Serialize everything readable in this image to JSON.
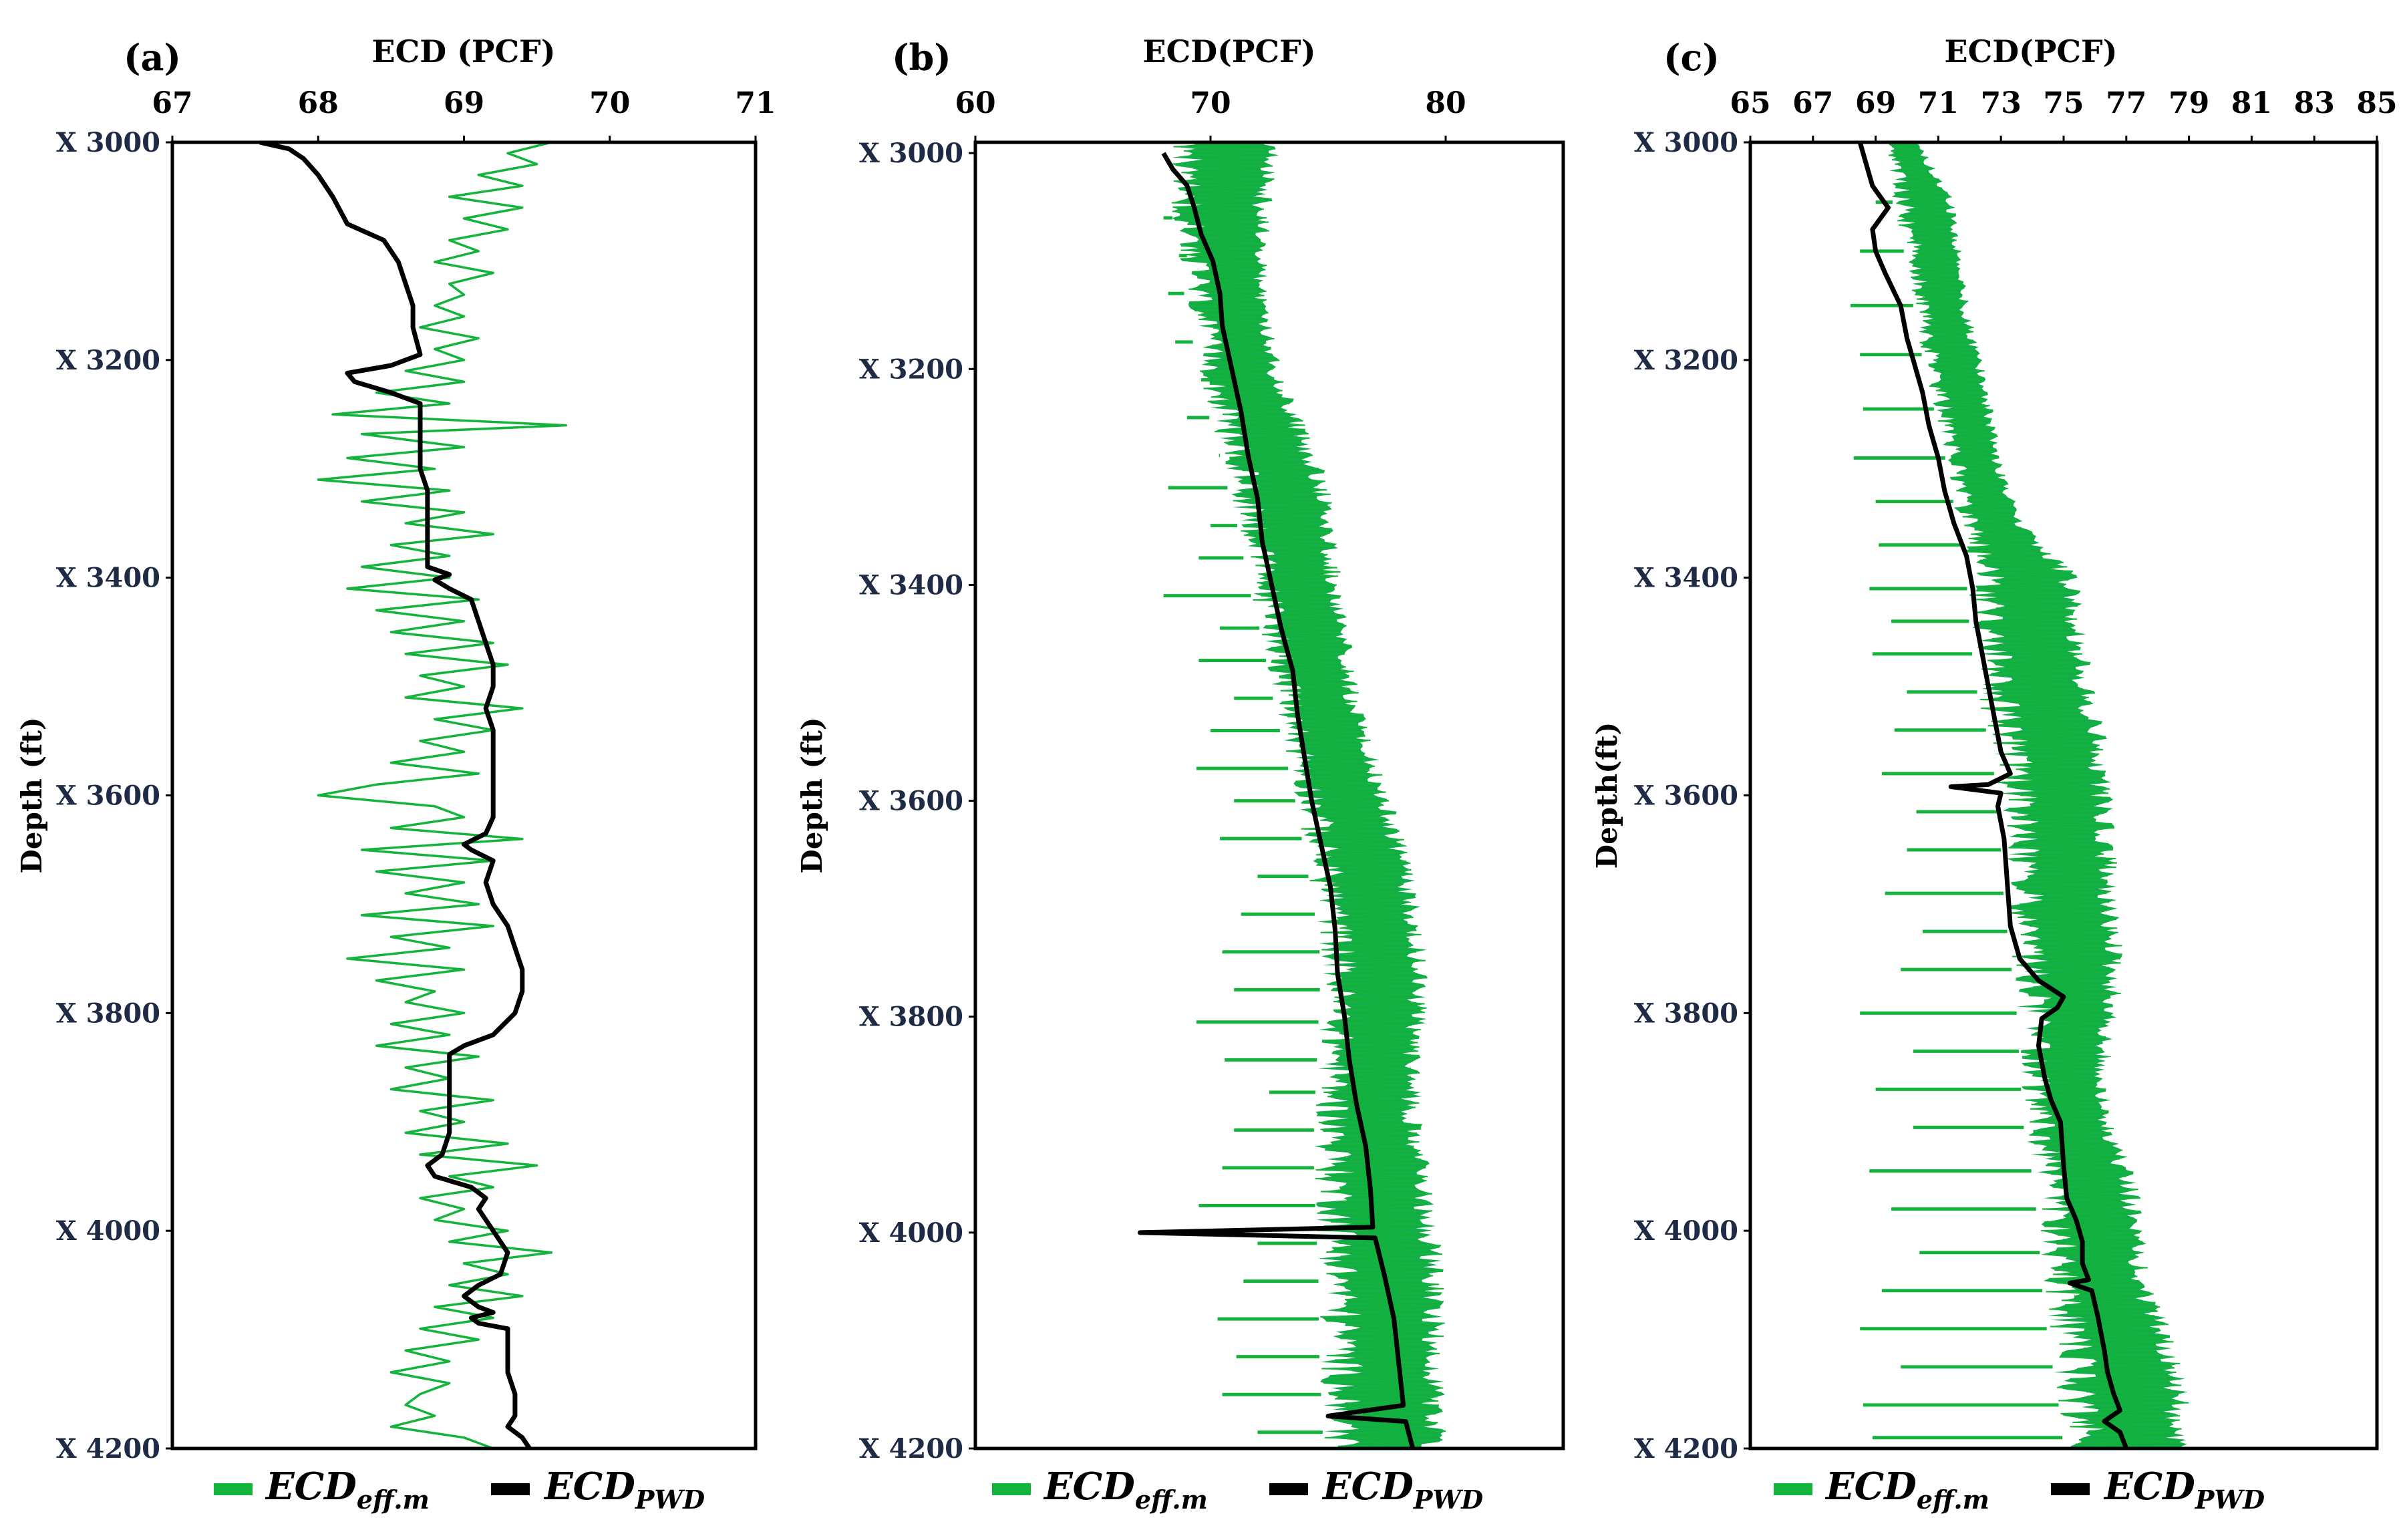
{
  "figure_title": "ECD comparison panels",
  "legend": {
    "eff_main": "ECD",
    "eff_sub": "eff.m",
    "pwd_main": "ECD",
    "pwd_sub": "PWD"
  },
  "colors": {
    "eff": "#14b33c",
    "eff_dense": "#12ad48",
    "pwd": "#000000"
  },
  "chart_data": [
    {
      "type": "line",
      "panel_label": "(a)",
      "xlabel": "ECD (PCF)",
      "ylabel": "Depth (ft)",
      "xlim": [
        67,
        71
      ],
      "xticks": [
        67,
        68,
        69,
        70,
        71
      ],
      "xtick_labels": [
        "67",
        "68",
        "69",
        "70",
        "71"
      ],
      "ylim": [
        3000,
        4200
      ],
      "yticks": [
        3000,
        3200,
        3400,
        3600,
        3800,
        4000,
        4200
      ],
      "ytick_labels": [
        "X 3000",
        "X 3200",
        "X 3400",
        "X 3600",
        "X 3800",
        "X 4000",
        "X 4200"
      ],
      "series": [
        {
          "name": "ECD_eff.m",
          "style": "thin",
          "depth": [
            3000,
            3010,
            3020,
            3030,
            3040,
            3050,
            3060,
            3070,
            3080,
            3090,
            3100,
            3110,
            3120,
            3130,
            3140,
            3150,
            3160,
            3170,
            3180,
            3190,
            3200,
            3210,
            3220,
            3230,
            3240,
            3250,
            3260,
            3268,
            3280,
            3290,
            3300,
            3310,
            3320,
            3330,
            3340,
            3350,
            3360,
            3370,
            3380,
            3390,
            3400,
            3410,
            3420,
            3430,
            3440,
            3450,
            3460,
            3470,
            3480,
            3490,
            3500,
            3510,
            3520,
            3530,
            3540,
            3550,
            3560,
            3570,
            3580,
            3590,
            3600,
            3610,
            3620,
            3630,
            3640,
            3650,
            3660,
            3670,
            3680,
            3690,
            3700,
            3710,
            3720,
            3730,
            3740,
            3750,
            3760,
            3770,
            3780,
            3790,
            3800,
            3810,
            3820,
            3830,
            3840,
            3850,
            3860,
            3870,
            3880,
            3890,
            3900,
            3910,
            3920,
            3930,
            3940,
            3950,
            3960,
            3970,
            3980,
            3990,
            4000,
            4010,
            4020,
            4030,
            4040,
            4050,
            4060,
            4070,
            4080,
            4090,
            4100,
            4110,
            4120,
            4130,
            4140,
            4150,
            4160,
            4170,
            4180,
            4190,
            4200
          ],
          "values": [
            69.6,
            69.3,
            69.5,
            69.1,
            69.4,
            68.9,
            69.4,
            69.0,
            69.3,
            68.9,
            69.1,
            68.8,
            69.2,
            68.9,
            69.0,
            68.8,
            69.0,
            68.7,
            69.1,
            68.8,
            69.0,
            68.6,
            69.0,
            68.4,
            68.9,
            68.1,
            69.7,
            68.3,
            69.0,
            68.2,
            68.8,
            68.0,
            68.9,
            68.3,
            69.0,
            68.6,
            69.2,
            68.5,
            68.9,
            68.3,
            68.9,
            68.2,
            69.1,
            68.4,
            69.0,
            68.5,
            69.2,
            68.6,
            69.3,
            68.7,
            69.0,
            68.6,
            69.4,
            68.8,
            69.2,
            68.7,
            69.0,
            68.5,
            69.1,
            68.4,
            68.0,
            68.8,
            69.0,
            68.5,
            69.4,
            68.3,
            69.2,
            68.4,
            69.0,
            68.6,
            69.1,
            68.3,
            69.2,
            68.5,
            68.9,
            68.2,
            69.0,
            68.4,
            68.8,
            68.6,
            69.0,
            68.5,
            68.9,
            68.4,
            69.1,
            68.6,
            68.9,
            68.5,
            69.2,
            68.7,
            69.0,
            68.6,
            69.3,
            68.7,
            69.5,
            68.9,
            69.2,
            68.7,
            69.0,
            68.8,
            69.3,
            68.9,
            69.6,
            69.0,
            69.3,
            68.9,
            69.4,
            68.8,
            69.2,
            68.7,
            69.1,
            68.6,
            68.9,
            68.5,
            68.9,
            68.7,
            68.6,
            68.8,
            68.5,
            69.0,
            69.2
          ],
          "breaks": []
        },
        {
          "name": "ECD_PWD",
          "style": "thick",
          "depth": [
            3000,
            3006,
            3015,
            3030,
            3050,
            3075,
            3090,
            3110,
            3130,
            3150,
            3170,
            3195,
            3205,
            3212,
            3220,
            3230,
            3240,
            3260,
            3280,
            3300,
            3320,
            3340,
            3360,
            3380,
            3390,
            3397,
            3402,
            3410,
            3420,
            3440,
            3460,
            3480,
            3500,
            3520,
            3540,
            3560,
            3580,
            3600,
            3620,
            3635,
            3645,
            3650,
            3660,
            3680,
            3700,
            3720,
            3740,
            3760,
            3780,
            3800,
            3820,
            3830,
            3838,
            3850,
            3870,
            3890,
            3910,
            3930,
            3935,
            3940,
            3950,
            3960,
            3970,
            3980,
            4000,
            4020,
            4040,
            4050,
            4055,
            4060,
            4070,
            4075,
            4080,
            4085,
            4090,
            4110,
            4130,
            4150,
            4170,
            4180,
            4190,
            4200
          ],
          "values": [
            67.6,
            67.8,
            67.9,
            68.0,
            68.1,
            68.2,
            68.45,
            68.55,
            68.6,
            68.65,
            68.65,
            68.7,
            68.5,
            68.2,
            68.25,
            68.5,
            68.7,
            68.7,
            68.7,
            68.7,
            68.75,
            68.75,
            68.75,
            68.75,
            68.75,
            68.9,
            68.8,
            68.9,
            69.05,
            69.1,
            69.15,
            69.2,
            69.2,
            69.15,
            69.2,
            69.2,
            69.2,
            69.2,
            69.2,
            69.15,
            69.0,
            69.05,
            69.2,
            69.15,
            69.2,
            69.3,
            69.35,
            69.4,
            69.4,
            69.35,
            69.2,
            69.0,
            68.9,
            68.9,
            68.9,
            68.9,
            68.9,
            68.85,
            68.8,
            68.75,
            68.8,
            69.05,
            69.15,
            69.1,
            69.2,
            69.3,
            69.25,
            69.1,
            69.05,
            69.0,
            69.1,
            69.2,
            69.05,
            69.1,
            69.3,
            69.3,
            69.3,
            69.35,
            69.35,
            69.3,
            69.4,
            69.45
          ],
          "breaks": []
        }
      ]
    },
    {
      "type": "line",
      "panel_label": "(b)",
      "xlabel": "ECD(PCF)",
      "ylabel": "Depth (ft)",
      "xlim": [
        60,
        85
      ],
      "xticks": [
        60,
        70,
        80
      ],
      "xtick_labels": [
        "60",
        "70",
        "80"
      ],
      "ylim": [
        2990,
        4200
      ],
      "yticks": [
        3000,
        3200,
        3400,
        3600,
        3800,
        4000,
        4200
      ],
      "ytick_labels": [
        "X 3000",
        "X 3200",
        "X 3400",
        "X 3600",
        "X 3800",
        "X 4000",
        "X 4200"
      ],
      "series": [
        {
          "name": "ECD_eff.m",
          "style": "band",
          "depth": [
            2990,
            3050,
            3100,
            3150,
            3200,
            3250,
            3300,
            3350,
            3400,
            3450,
            3500,
            3550,
            3600,
            3650,
            3700,
            3750,
            3800,
            3850,
            3900,
            3950,
            4000,
            4050,
            4100,
            4150,
            4200
          ],
          "upper": [
            73.0,
            72.6,
            72.4,
            72.6,
            73.0,
            74.0,
            75.0,
            75.4,
            75.6,
            76.0,
            76.3,
            77.0,
            77.8,
            78.5,
            79.0,
            79.3,
            79.2,
            79.0,
            79.0,
            79.5,
            79.8,
            80.0,
            80.0,
            80.0,
            80.0
          ],
          "lower": [
            67.8,
            68.3,
            68.7,
            69.0,
            69.5,
            70.0,
            70.6,
            71.2,
            71.6,
            72.2,
            72.6,
            73.1,
            73.6,
            74.0,
            74.4,
            74.7,
            74.6,
            74.5,
            74.4,
            74.4,
            74.5,
            74.6,
            74.6,
            74.7,
            74.8
          ],
          "spikes_depth": [
            3060,
            3095,
            3130,
            3175,
            3210,
            3245,
            3280,
            3310,
            3345,
            3375,
            3410,
            3440,
            3470,
            3505,
            3535,
            3570,
            3600,
            3635,
            3670,
            3705,
            3740,
            3775,
            3805,
            3840,
            3870,
            3905,
            3940,
            3975,
            4010,
            4045,
            4080,
            4115,
            4150,
            4185
          ],
          "spikes_value": [
            68.0,
            69.0,
            68.2,
            68.5,
            70.0,
            69.0,
            70.4,
            68.2,
            70.0,
            69.5,
            68.0,
            70.4,
            69.5,
            71.0,
            70.0,
            69.4,
            71.0,
            70.4,
            72.0,
            71.3,
            70.5,
            71.0,
            69.4,
            70.6,
            72.5,
            71.0,
            70.5,
            69.5,
            72.0,
            71.4,
            70.3,
            71.1,
            70.5,
            72.0
          ]
        },
        {
          "name": "ECD_PWD",
          "style": "thick",
          "depth": [
            3000,
            3015,
            3030,
            3050,
            3075,
            3100,
            3130,
            3160,
            3200,
            3240,
            3280,
            3320,
            3360,
            3400,
            3440,
            3480,
            3520,
            3560,
            3600,
            3640,
            3680,
            3720,
            3760,
            3800,
            3840,
            3880,
            3920,
            3960,
            3995,
            4000,
            4005,
            4040,
            4080,
            4120,
            4160,
            4170,
            4175,
            4200
          ],
          "values": [
            68.0,
            68.4,
            69.0,
            69.3,
            69.6,
            70.1,
            70.4,
            70.5,
            70.9,
            71.3,
            71.6,
            72.0,
            72.2,
            72.6,
            73.0,
            73.5,
            73.7,
            74.0,
            74.3,
            74.7,
            75.1,
            75.3,
            75.4,
            75.7,
            75.9,
            76.2,
            76.6,
            76.8,
            76.9,
            67.0,
            77.0,
            77.4,
            77.8,
            78.0,
            78.2,
            75.0,
            78.3,
            78.6
          ],
          "breaks": []
        }
      ]
    },
    {
      "type": "line",
      "panel_label": "(c)",
      "xlabel": "ECD(PCF)",
      "ylabel": "Depth(ft)",
      "xlim": [
        65,
        85
      ],
      "xticks": [
        65,
        67,
        69,
        71,
        73,
        75,
        77,
        79,
        81,
        83,
        85
      ],
      "xtick_labels": [
        "65",
        "67",
        "69",
        "71",
        "73",
        "75",
        "77",
        "79",
        "81",
        "83",
        "85"
      ],
      "ylim": [
        3000,
        4200
      ],
      "yticks": [
        3000,
        3200,
        3400,
        3600,
        3800,
        4000,
        4200
      ],
      "ytick_labels": [
        "X 3000",
        "X 3200",
        "X 3400",
        "X 3600",
        "X 3800",
        "X 4000",
        "X 4200"
      ],
      "series": [
        {
          "name": "ECD_eff.m",
          "style": "band",
          "depth": [
            3000,
            3050,
            3100,
            3150,
            3200,
            3250,
            3300,
            3350,
            3400,
            3450,
            3500,
            3550,
            3600,
            3650,
            3700,
            3750,
            3800,
            3850,
            3900,
            3950,
            4000,
            4050,
            4100,
            4150,
            4200
          ],
          "upper": [
            70.4,
            71.5,
            71.8,
            72.0,
            72.4,
            72.8,
            73.1,
            73.8,
            75.5,
            75.8,
            76.0,
            76.4,
            76.6,
            76.7,
            76.8,
            76.9,
            76.8,
            76.5,
            76.6,
            77.3,
            77.7,
            77.8,
            78.6,
            79.0,
            79.0
          ],
          "lower": [
            69.2,
            69.5,
            69.9,
            70.2,
            70.5,
            70.9,
            71.3,
            71.6,
            71.9,
            72.0,
            72.2,
            72.6,
            72.9,
            73.0,
            73.1,
            73.3,
            73.5,
            73.6,
            73.7,
            74.0,
            74.2,
            74.3,
            74.5,
            74.8,
            75.0
          ],
          "spikes_depth": [
            3055,
            3100,
            3150,
            3195,
            3245,
            3290,
            3330,
            3370,
            3410,
            3440,
            3470,
            3505,
            3540,
            3580,
            3615,
            3650,
            3690,
            3725,
            3760,
            3800,
            3835,
            3870,
            3905,
            3945,
            3980,
            4020,
            4055,
            4090,
            4125,
            4160,
            4190
          ],
          "spikes_value": [
            69.0,
            68.5,
            68.2,
            68.5,
            68.6,
            68.3,
            69.0,
            69.1,
            68.8,
            69.5,
            68.9,
            70.0,
            69.6,
            69.2,
            70.3,
            70.0,
            69.3,
            70.5,
            69.8,
            68.5,
            70.2,
            69.0,
            70.2,
            68.8,
            69.5,
            70.4,
            69.2,
            68.5,
            69.8,
            68.6,
            68.9
          ]
        },
        {
          "name": "ECD_PWD",
          "style": "thick",
          "depth": [
            3000,
            3020,
            3040,
            3060,
            3080,
            3100,
            3120,
            3150,
            3180,
            3200,
            3230,
            3260,
            3290,
            3320,
            3350,
            3380,
            3410,
            3440,
            3470,
            3500,
            3530,
            3560,
            3580,
            3590,
            3592,
            3598,
            3610,
            3640,
            3680,
            3720,
            3750,
            3770,
            3785,
            3795,
            3805,
            3830,
            3860,
            3880,
            3900,
            3940,
            3970,
            3990,
            4010,
            4030,
            4045,
            4048,
            4055,
            4080,
            4110,
            4130,
            4150,
            4165,
            4175,
            4185,
            4200
          ],
          "values": [
            68.5,
            68.7,
            68.9,
            69.4,
            68.9,
            69.0,
            69.3,
            69.8,
            70.0,
            70.2,
            70.5,
            70.7,
            71.0,
            71.2,
            71.5,
            71.9,
            72.1,
            72.2,
            72.4,
            72.6,
            72.8,
            73.0,
            73.3,
            72.6,
            71.4,
            73.0,
            72.9,
            73.1,
            73.2,
            73.3,
            73.6,
            74.2,
            75.0,
            74.8,
            74.3,
            74.2,
            74.4,
            74.6,
            74.9,
            75.0,
            75.1,
            75.4,
            75.6,
            75.6,
            75.8,
            75.2,
            75.9,
            76.1,
            76.3,
            76.4,
            76.6,
            76.8,
            76.3,
            76.8,
            77.0
          ],
          "breaks": []
        }
      ]
    }
  ]
}
